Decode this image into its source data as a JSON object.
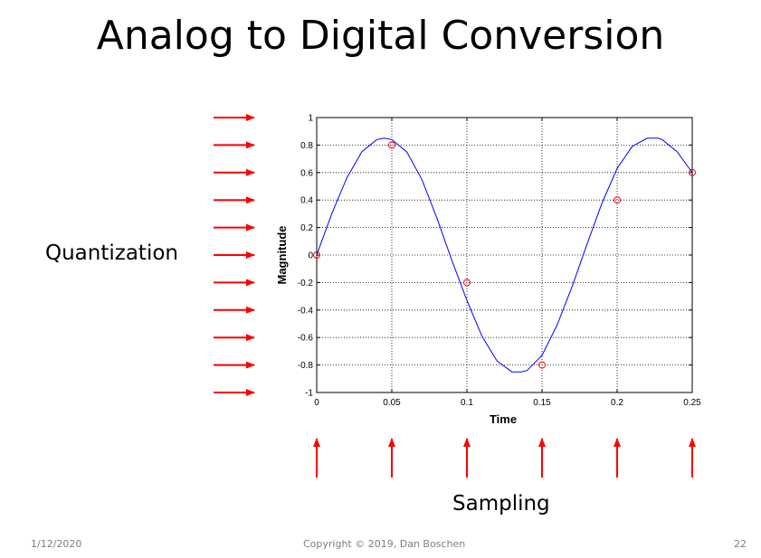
{
  "slide": {
    "title": "Analog to Digital Conversion",
    "quantization_label": "Quantization",
    "sampling_label": "Sampling",
    "footer_date": "1/12/2020",
    "footer_copyright": "Copyright © 2019, Dan Boschen",
    "page_number": "22",
    "arrow_color": "#ff0000"
  },
  "chart_data": {
    "type": "line",
    "xlabel": "Time",
    "ylabel": "Magnitude",
    "xlim": [
      0,
      0.25
    ],
    "ylim": [
      -1,
      1
    ],
    "xticks": [
      0,
      0.05,
      0.1,
      0.15,
      0.2,
      0.25
    ],
    "xtick_labels": [
      "0",
      "0.05",
      "0.1",
      "0.15",
      "0.2",
      "0.25"
    ],
    "yticks": [
      1,
      0.8,
      0.6,
      0.4,
      0.2,
      0,
      -0.2,
      -0.4,
      -0.6,
      -0.8,
      -1
    ],
    "ytick_labels": [
      "1",
      "0.8",
      "0.6",
      "0.4",
      "0.2",
      "0",
      "-0.2",
      "-0.4",
      "-0.6",
      "-0.8",
      "-1"
    ],
    "grid": true,
    "series": [
      {
        "style": "line",
        "color": "#0000ff",
        "x": [
          0,
          0.01,
          0.02,
          0.03,
          0.04,
          0.045,
          0.05,
          0.06,
          0.07,
          0.08,
          0.09,
          0.1,
          0.11,
          0.12,
          0.13,
          0.136,
          0.14,
          0.15,
          0.16,
          0.17,
          0.18,
          0.19,
          0.2,
          0.21,
          0.22,
          0.227,
          0.23,
          0.24,
          0.25
        ],
        "y": [
          0,
          0.3,
          0.56,
          0.75,
          0.84,
          0.85,
          0.84,
          0.75,
          0.55,
          0.27,
          -0.04,
          -0.33,
          -0.59,
          -0.77,
          -0.85,
          -0.85,
          -0.84,
          -0.73,
          -0.51,
          -0.23,
          0.08,
          0.38,
          0.63,
          0.79,
          0.85,
          0.85,
          0.84,
          0.75,
          0.6
        ]
      },
      {
        "style": "markers",
        "color": "#ff0000",
        "marker": "circle",
        "x": [
          0,
          0.05,
          0.1,
          0.15,
          0.2,
          0.25
        ],
        "y": [
          0,
          0.8,
          -0.2,
          -0.8,
          0.4,
          0.6
        ]
      }
    ]
  }
}
